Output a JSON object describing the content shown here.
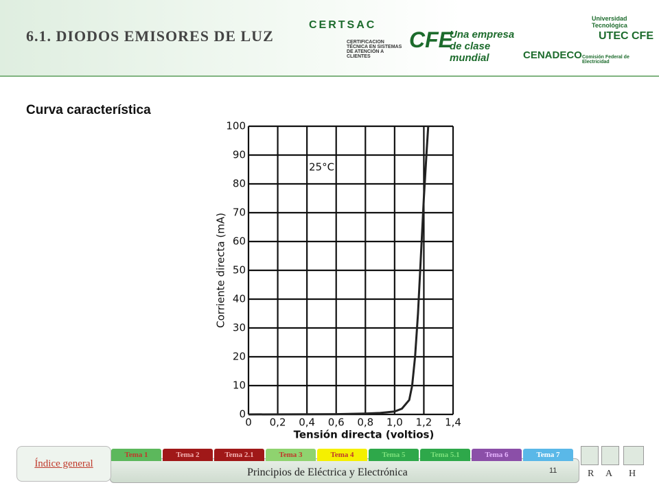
{
  "header": {
    "title": "6.1. DIODOS EMISORES DE LUZ",
    "logos": [
      "CERTSAC",
      "CERTIFICACION TÉCNICA EN SISTEMAS DE ATENCIÓN A CLIENTES",
      "CFE",
      "Una empresa de clase mundial",
      "CENADECO",
      "Universidad Tecnológica",
      "UTEC CFE",
      "Comisión Federal de Electricidad"
    ]
  },
  "subtitle": "Curva característica",
  "chart_data": {
    "type": "line",
    "x_label": "Tensión directa (voltios)",
    "y_label": "Corriente directa (mA)",
    "annotation": "25°C",
    "color": "#222222",
    "grid": true,
    "xlim": [
      0,
      1.4
    ],
    "ylim": [
      0,
      100
    ],
    "xticks": [
      0,
      {
        "value": 0.2,
        "label": "0,2"
      },
      {
        "value": 0.4,
        "label": "0,4"
      },
      {
        "value": 0.6,
        "label": "0,6"
      },
      {
        "value": 0.8,
        "label": "0,8"
      },
      {
        "value": 1.0,
        "label": "1,0"
      },
      {
        "value": 1.2,
        "label": "1,2"
      },
      {
        "value": 1.4,
        "label": "1,4"
      }
    ],
    "yticks": [
      0,
      10,
      20,
      30,
      40,
      50,
      60,
      70,
      80,
      90,
      100
    ],
    "x": [
      0,
      0.6,
      0.8,
      0.9,
      1.0,
      1.05,
      1.1,
      1.12,
      1.14,
      1.16,
      1.18,
      1.2,
      1.22,
      1.23
    ],
    "values": [
      0,
      0.1,
      0.3,
      0.5,
      1,
      2,
      5,
      10,
      20,
      35,
      55,
      75,
      92,
      100
    ]
  },
  "footer": {
    "index": "Índice general",
    "tabs": [
      "Tema 1",
      "Tema 2",
      "Tema 2.1",
      "Tema 3",
      "Tema 4",
      "Tema 5",
      "Tema 5.1",
      "Tema 6",
      "Tema 7"
    ],
    "course": "Principios de Eléctrica y Electrónica",
    "page": "11",
    "nav": [
      "R",
      "A",
      "H"
    ]
  }
}
